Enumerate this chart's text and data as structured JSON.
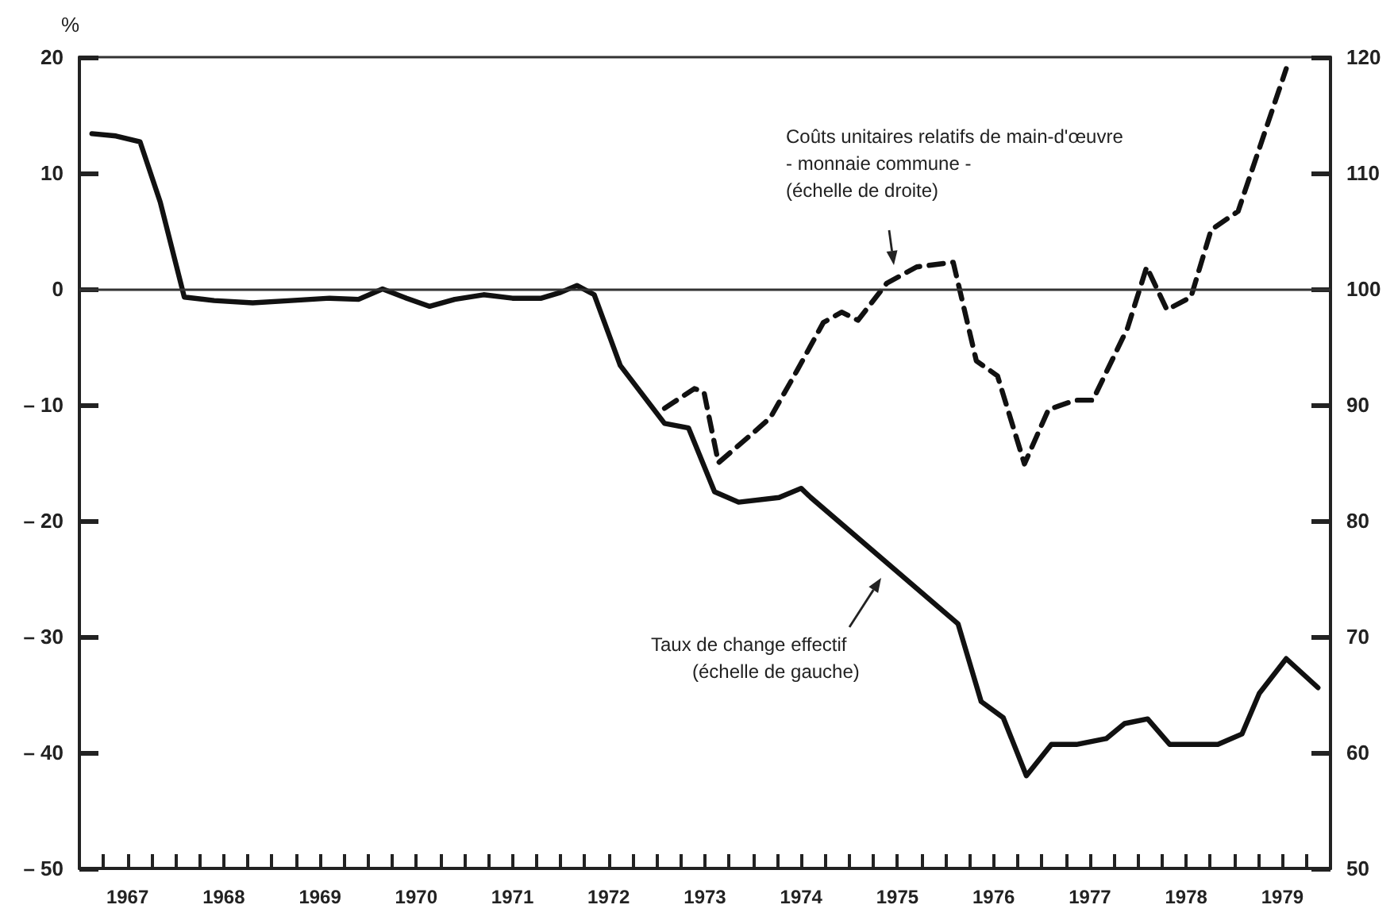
{
  "chart_data": {
    "type": "line",
    "ylabel": "%",
    "xlim": [
      1967,
      1980
    ],
    "ylim": [
      -50,
      20
    ],
    "yticks": [
      {
        "value": -50,
        "label": "– 50"
      },
      {
        "value": -40,
        "label": "– 40"
      },
      {
        "value": -30,
        "label": "– 30"
      },
      {
        "value": -20,
        "label": "– 20"
      },
      {
        "value": -10,
        "label": "– 10"
      },
      0,
      10,
      20
    ],
    "y2lim": [
      50,
      120
    ],
    "y2ticks": [
      50,
      60,
      70,
      80,
      90,
      100,
      110,
      120
    ],
    "xticks": [
      {
        "value": 1967,
        "label": null
      },
      {
        "value": 1967.25,
        "label": null
      },
      {
        "value": 1967.5,
        "label": "1967"
      },
      {
        "value": 1967.75,
        "label": null
      },
      {
        "value": 1968,
        "label": null
      },
      {
        "value": 1968.25,
        "label": null
      },
      {
        "value": 1968.5,
        "label": "1968"
      },
      {
        "value": 1968.75,
        "label": null
      },
      {
        "value": 1969,
        "label": null
      },
      {
        "value": 1969.25,
        "label": null
      },
      {
        "value": 1969.5,
        "label": "1969"
      },
      {
        "value": 1969.75,
        "label": null
      },
      {
        "value": 1970,
        "label": null
      },
      {
        "value": 1970.25,
        "label": null
      },
      {
        "value": 1970.5,
        "label": "1970"
      },
      {
        "value": 1970.75,
        "label": null
      },
      {
        "value": 1971,
        "label": null
      },
      {
        "value": 1971.25,
        "label": null
      },
      {
        "value": 1971.5,
        "label": "1971"
      },
      {
        "value": 1971.75,
        "label": null
      },
      {
        "value": 1972,
        "label": null
      },
      {
        "value": 1972.25,
        "label": null
      },
      {
        "value": 1972.5,
        "label": "1972"
      },
      {
        "value": 1972.75,
        "label": null
      },
      {
        "value": 1973,
        "label": null
      },
      {
        "value": 1973.25,
        "label": null
      },
      {
        "value": 1973.5,
        "label": "1973"
      },
      {
        "value": 1973.75,
        "label": null
      },
      {
        "value": 1974,
        "label": null
      },
      {
        "value": 1974.25,
        "label": null
      },
      {
        "value": 1974.5,
        "label": "1974"
      },
      {
        "value": 1974.75,
        "label": null
      },
      {
        "value": 1975,
        "label": null
      },
      {
        "value": 1975.25,
        "label": null
      },
      {
        "value": 1975.5,
        "label": "1975"
      },
      {
        "value": 1975.75,
        "label": null
      },
      {
        "value": 1976,
        "label": null
      },
      {
        "value": 1976.25,
        "label": null
      },
      {
        "value": 1976.5,
        "label": "1976"
      },
      {
        "value": 1976.75,
        "label": null
      },
      {
        "value": 1977,
        "label": null
      },
      {
        "value": 1977.25,
        "label": null
      },
      {
        "value": 1977.5,
        "label": "1977"
      },
      {
        "value": 1977.75,
        "label": null
      },
      {
        "value": 1978,
        "label": null
      },
      {
        "value": 1978.25,
        "label": null
      },
      {
        "value": 1978.5,
        "label": "1978"
      },
      {
        "value": 1978.75,
        "label": null
      },
      {
        "value": 1979,
        "label": null
      },
      {
        "value": 1979.25,
        "label": null
      },
      {
        "value": 1979.5,
        "label": "1979"
      },
      {
        "value": 1979.75,
        "label": null
      },
      {
        "value": 1980,
        "label": null
      }
    ],
    "marker": "none",
    "grid": false,
    "ref_lines": [
      {
        "axis": "y",
        "value": 0,
        "color": "#333333"
      }
    ],
    "annotations": [
      "Coûts unitaires relatifs de main-d'œuvre\n- monnaie commune -\n(échelle de droite)",
      "Taux de change effectif\n(échelle de gauche)"
    ],
    "series": [
      {
        "color": "#111111",
        "line_style": "solid",
        "x": [
          1967.13,
          1967.38,
          1967.63,
          1967.84,
          1968.09,
          1968.4,
          1968.8,
          1969.2,
          1969.6,
          1969.9,
          1970.15,
          1970.4,
          1970.64,
          1970.9,
          1971.2,
          1971.5,
          1971.8,
          1972.0,
          1972.17,
          1972.35,
          1972.62,
          1973.08,
          1973.33,
          1973.6,
          1973.85,
          1974.27,
          1974.5,
          1974.6,
          1976.13,
          1976.37,
          1976.6,
          1976.84,
          1977.1,
          1977.36,
          1977.67,
          1977.86,
          1978.1,
          1978.33,
          1978.83,
          1979.08,
          1979.26,
          1979.54,
          1979.87
        ],
        "values": [
          13.4,
          13.2,
          12.7,
          7.5,
          -0.7,
          -1,
          -1.2,
          -1,
          -0.8,
          -0.9,
          0,
          -0.8,
          -1.5,
          -0.9,
          -0.5,
          -0.8,
          -0.8,
          -0.3,
          0.3,
          -0.5,
          -6.6,
          -11.6,
          -12,
          -17.5,
          -18.4,
          -18,
          -17.2,
          -18,
          -28.9,
          -35.6,
          -37,
          -42,
          -39.3,
          -39.3,
          -38.8,
          -37.5,
          -37.1,
          -39.3,
          -39.3,
          -38.4,
          -34.9,
          -31.9,
          -34.4
        ]
      },
      {
        "color": "#111111",
        "line_style": "dashed",
        "axis": "y2",
        "x": [
          1973.08,
          1973.39,
          1973.49,
          1973.64,
          1973.99,
          1974.18,
          1974.46,
          1974.73,
          1974.92,
          1975.09,
          1975.39,
          1975.7,
          1976.08,
          1976.32,
          1976.54,
          1976.82,
          1977.07,
          1977.35,
          1977.53,
          1977.89,
          1978.09,
          1978.3,
          1978.55,
          1978.76,
          1979.04,
          1979.54
        ],
        "values": [
          89.7,
          91.4,
          91.1,
          85,
          87.5,
          88.9,
          93,
          97.1,
          98,
          97.3,
          100.5,
          101.9,
          102.3,
          93.8,
          92.5,
          84.9,
          89.6,
          90.4,
          90.4,
          96.6,
          101.9,
          98.2,
          99.3,
          105.1,
          106.7,
          119
        ]
      }
    ]
  }
}
